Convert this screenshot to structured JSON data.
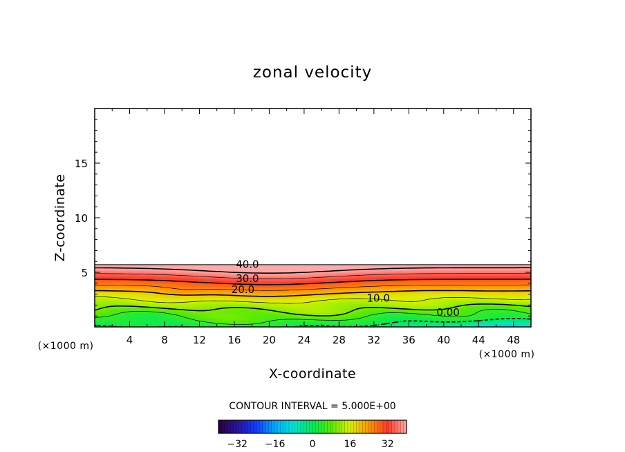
{
  "chart_data": {
    "type": "contour",
    "title": "zonal velocity",
    "xlabel": "X-coordinate",
    "ylabel": "Z-coordinate",
    "x_unit_label": "(×1000 m)",
    "xlim": [
      0,
      50
    ],
    "ylim": [
      0,
      20
    ],
    "x_ticks": [
      4,
      8,
      12,
      16,
      20,
      24,
      28,
      32,
      36,
      40,
      44,
      48
    ],
    "y_ticks": [
      5,
      10,
      15
    ],
    "contour_interval_text": "CONTOUR INTERVAL = 5.000E+00",
    "contour_levels": [
      0,
      5,
      10,
      15,
      20,
      25,
      30,
      35,
      40
    ],
    "contour_labels": [
      {
        "text": "40.0",
        "x": 17.5,
        "z": 5.4
      },
      {
        "text": "30.0",
        "x": 17.5,
        "z": 4.1
      },
      {
        "text": "20.0",
        "x": 17.0,
        "z": 3.1
      },
      {
        "text": "10.0",
        "x": 32.5,
        "z": 2.3
      },
      {
        "text": "0.00",
        "x": 40.5,
        "z": 1.0
      }
    ],
    "field_top_z": 5.7,
    "colorbar": {
      "range": [
        -40,
        40
      ],
      "ticks": [
        -32,
        -16,
        0,
        16,
        32
      ],
      "tick_labels": [
        "−32",
        "−16",
        "0",
        "16",
        "32"
      ]
    },
    "colors": {
      "background": "#ffffff",
      "axis": "#000000"
    }
  }
}
